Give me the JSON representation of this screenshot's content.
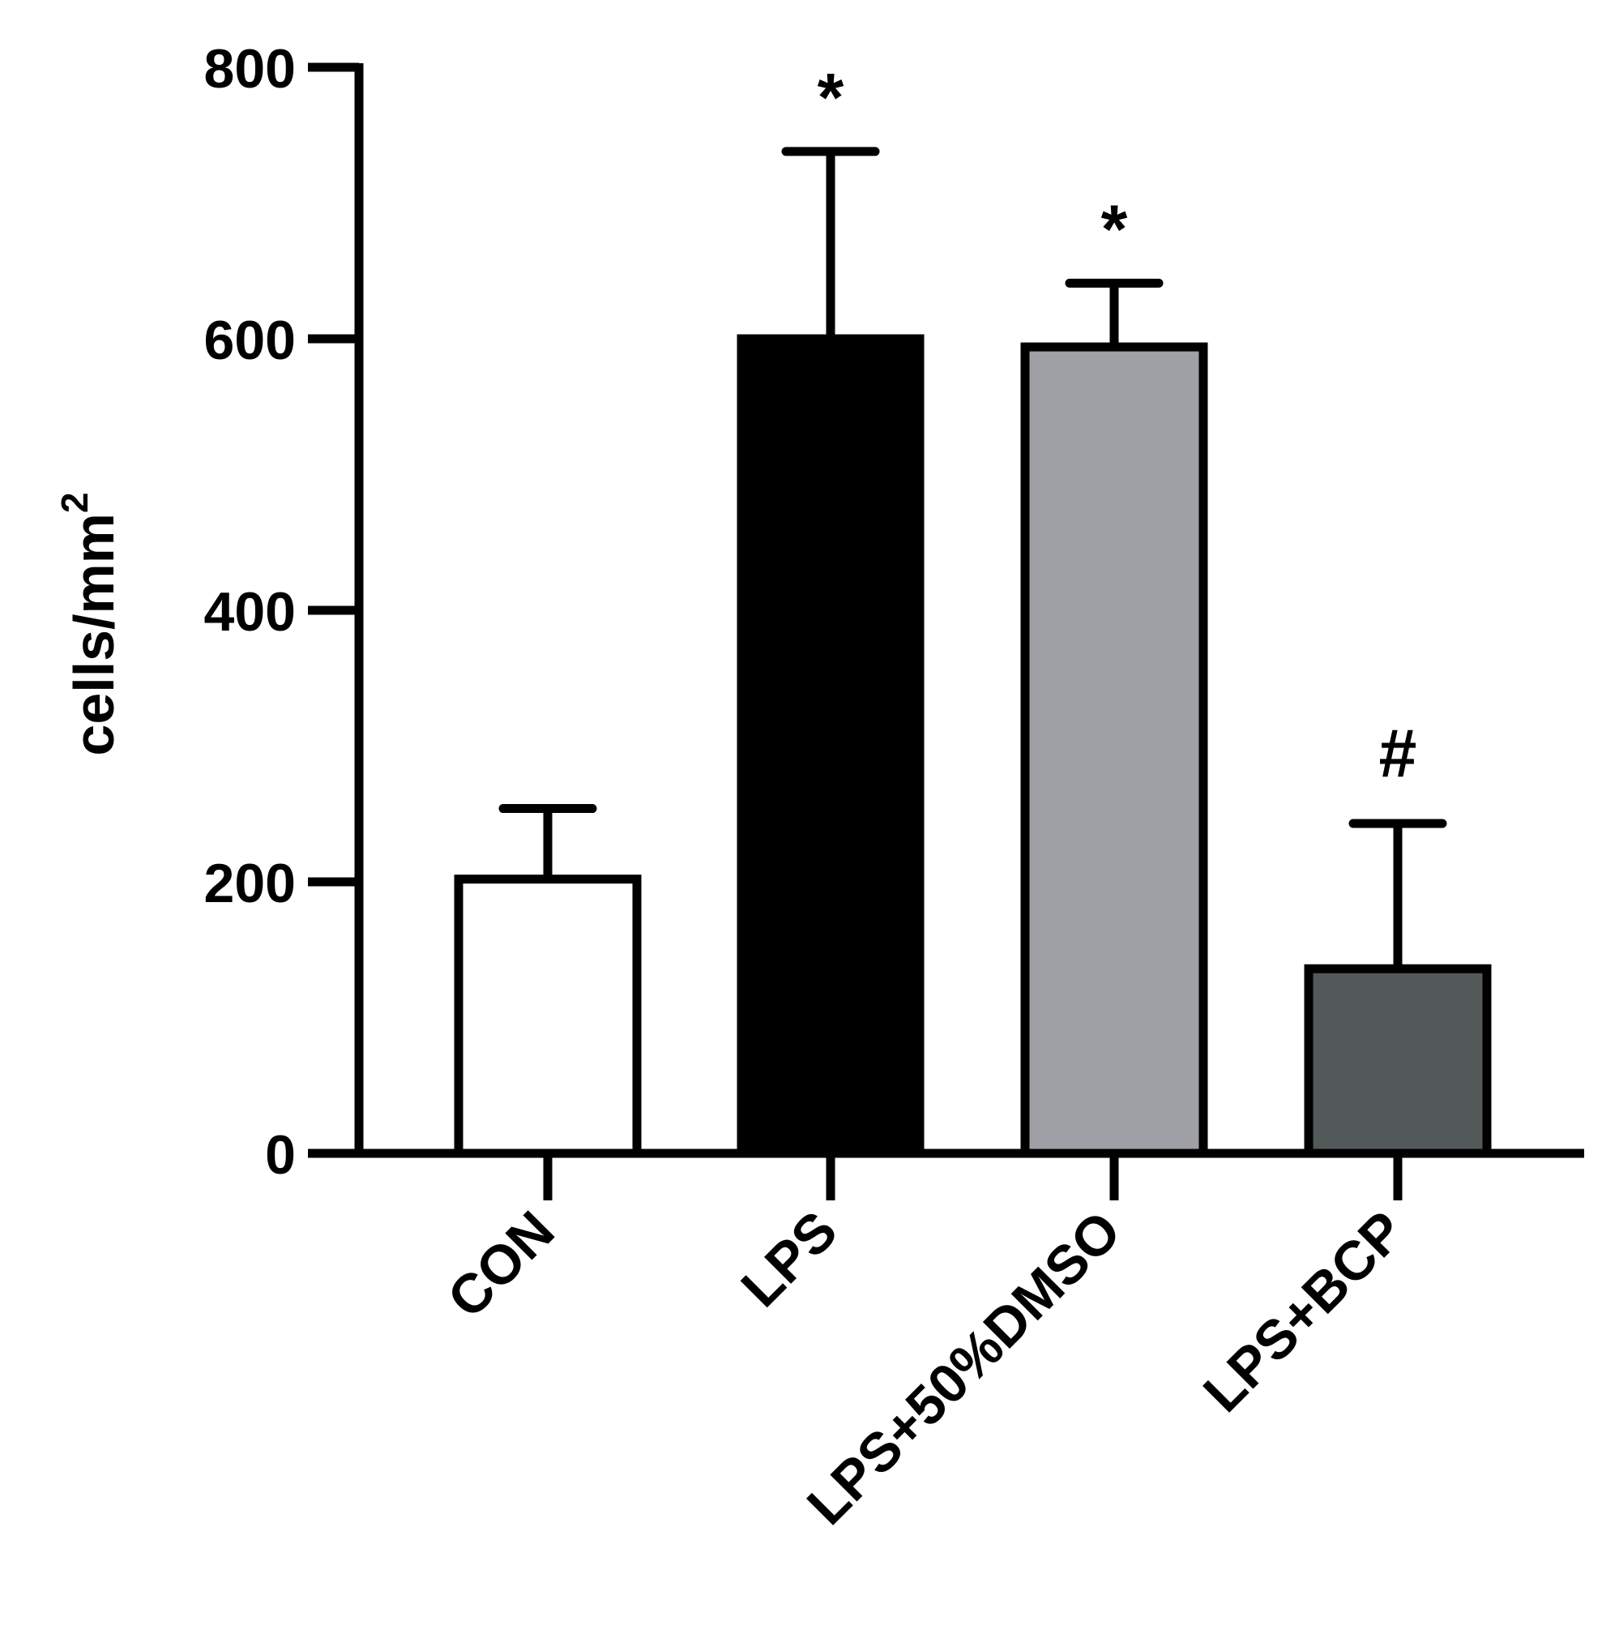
{
  "chart_data": {
    "type": "bar",
    "categories": [
      "CON",
      "LPS",
      "LPS+50%DMSO",
      "LPS+BCP"
    ],
    "series": [
      {
        "values": [
          202,
          600,
          594,
          136
        ],
        "errors": [
          52,
          138,
          47,
          107
        ],
        "fills": [
          "#ffffff",
          "#000000",
          "#9f9fa6",
          "#535858"
        ],
        "annotations": [
          "",
          "*",
          "*",
          "#"
        ]
      }
    ],
    "title": "",
    "xlabel": "",
    "ylabel": "cells/mm",
    "ylabel_superscript": "2",
    "ylim": [
      0,
      800
    ],
    "yticks": [
      "0",
      "200",
      "400",
      "600",
      "800"
    ],
    "grid": false,
    "legend": "none"
  }
}
